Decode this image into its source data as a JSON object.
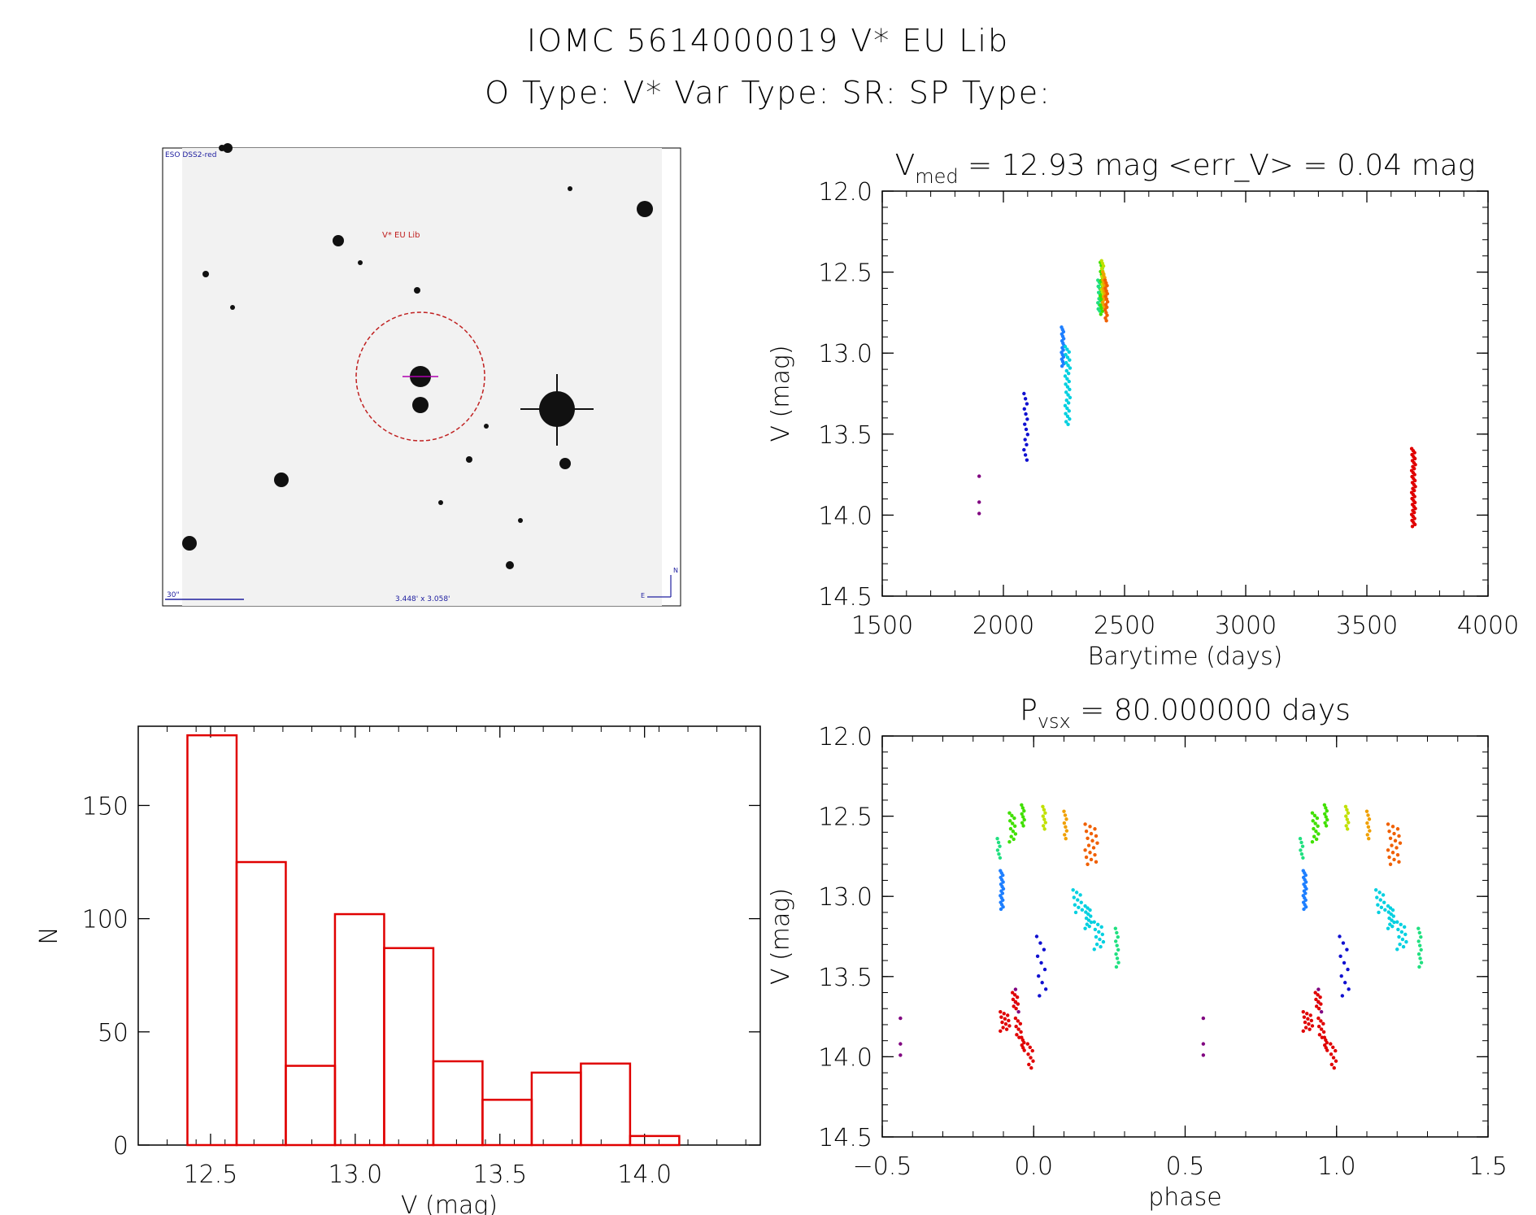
{
  "header": {
    "line1": "IOMC 5614000019    V* EU Lib",
    "line2": "O Type: V*  Var Type: SR:  SP Type:"
  },
  "finder": {
    "survey_label": "ESO DSS2-red",
    "target_label": "V* EU Lib",
    "scale_label": "30\"",
    "fov_label": "3.448' x 3.058'",
    "north_label": "N",
    "east_label": "E"
  },
  "chart_data": [
    {
      "id": "lightcurve",
      "type": "scatter",
      "title_main": "V",
      "title_sub": "med",
      "title_rest": " = 12.93 mag <err_V> = 0.04 mag",
      "xlabel": "Barytime (days)",
      "ylabel": "V (mag)",
      "xlim": [
        1500,
        4000
      ],
      "ylim": [
        14.5,
        12.0
      ],
      "xticks": [
        1500,
        2000,
        2500,
        3000,
        3500,
        4000
      ],
      "xtick_labels": [
        "1500",
        "2000",
        "2500",
        "3000",
        "3500",
        "4000"
      ],
      "yticks": [
        12.0,
        12.5,
        13.0,
        13.5,
        14.0,
        14.5
      ],
      "ytick_labels": [
        "12.0",
        "12.5",
        "13.0",
        "13.5",
        "14.0",
        "14.5"
      ],
      "groups": [
        {
          "color": "#800080",
          "points": [
            [
              1900,
              13.76
            ],
            [
              1900,
              13.92
            ],
            [
              1900,
              13.99
            ]
          ]
        },
        {
          "color": "#1010d0",
          "x": [
            2085,
            2100
          ],
          "y": [
            13.25,
            13.66
          ],
          "n": 14
        },
        {
          "color": "#1e7fff",
          "x": [
            2240,
            2250
          ],
          "y": [
            12.84,
            13.08
          ],
          "n": 18
        },
        {
          "color": "#00d0e0",
          "x": [
            2255,
            2275
          ],
          "y": [
            12.96,
            13.44
          ],
          "n": 30
        },
        {
          "color": "#20e080",
          "x": [
            2390,
            2405
          ],
          "y": [
            12.55,
            12.74
          ],
          "n": 16
        },
        {
          "color": "#40e000",
          "x": [
            2400,
            2410
          ],
          "y": [
            12.44,
            12.76
          ],
          "n": 18
        },
        {
          "color": "#c0e000",
          "x": [
            2405,
            2415
          ],
          "y": [
            12.43,
            12.64
          ],
          "n": 14
        },
        {
          "color": "#f0a000",
          "x": [
            2410,
            2420
          ],
          "y": [
            12.5,
            12.72
          ],
          "n": 14
        },
        {
          "color": "#f06000",
          "x": [
            2420,
            2430
          ],
          "y": [
            12.55,
            12.8
          ],
          "n": 16
        },
        {
          "color": "#e00000",
          "x": [
            3685,
            3700
          ],
          "y": [
            13.59,
            14.07
          ],
          "n": 40
        }
      ]
    },
    {
      "id": "histogram",
      "type": "bar",
      "xlabel": "V (mag)",
      "ylabel": "N",
      "xlim": [
        12.25,
        14.4
      ],
      "ylim": [
        0,
        185
      ],
      "xticks": [
        12.5,
        13.0,
        13.5,
        14.0
      ],
      "xtick_labels": [
        "12.5",
        "13.0",
        "13.5",
        "14.0"
      ],
      "yticks": [
        0,
        50,
        100,
        150
      ],
      "ytick_labels": [
        "0",
        "50",
        "100",
        "150"
      ],
      "bin_edges": [
        12.42,
        12.59,
        12.76,
        12.93,
        13.1,
        13.27,
        13.44,
        13.61,
        13.78,
        13.95,
        14.12
      ],
      "counts": [
        181,
        125,
        35,
        102,
        87,
        37,
        20,
        32,
        36,
        4
      ],
      "bar_color": "#e00000"
    },
    {
      "id": "phased",
      "type": "scatter",
      "title_main": "P",
      "title_sub": "vsx",
      "title_rest": " = 80.000000 days",
      "xlabel": "phase",
      "ylabel": "V (mag)",
      "xlim": [
        -0.5,
        1.5
      ],
      "ylim": [
        14.5,
        12.0
      ],
      "xticks": [
        -0.5,
        0.0,
        0.5,
        1.0,
        1.5
      ],
      "xtick_labels": [
        "−0.5",
        "0.0",
        "0.5",
        "1.0",
        "1.5"
      ],
      "yticks": [
        12.0,
        12.5,
        13.0,
        13.5,
        14.0,
        14.5
      ],
      "ytick_labels": [
        "12.0",
        "12.5",
        "13.0",
        "13.5",
        "14.0",
        "14.5"
      ],
      "groups": [
        {
          "color": "#800080",
          "points": [
            [
              -0.44,
              13.76
            ],
            [
              -0.44,
              13.92
            ],
            [
              -0.44,
              13.99
            ]
          ]
        },
        {
          "color": "#800080",
          "points": [
            [
              -0.06,
              13.58
            ],
            [
              -0.06,
              13.66
            ],
            [
              -0.05,
              13.72
            ]
          ]
        },
        {
          "color": "#e00000",
          "x": [
            -0.11,
            -0.08
          ],
          "y": [
            13.72,
            13.84
          ],
          "n": 12
        },
        {
          "color": "#e00000",
          "x": [
            -0.07,
            -0.05
          ],
          "y": [
            13.6,
            13.7
          ],
          "n": 8
        },
        {
          "color": "#e00000",
          "x": [
            -0.06,
            -0.04
          ],
          "y": [
            13.76,
            13.88
          ],
          "n": 8
        },
        {
          "color": "#e00000",
          "x": [
            -0.04,
            -0.03
          ],
          "y": [
            13.88,
            13.96
          ],
          "n": 6
        },
        {
          "color": "#e00000",
          "x": [
            -0.02,
            0.0
          ],
          "y": [
            13.92,
            14.07
          ],
          "n": 8
        },
        {
          "color": "#1010d0",
          "x": [
            0.01,
            0.04
          ],
          "y": [
            13.25,
            13.62
          ],
          "n": 10
        },
        {
          "color": "#1e7fff",
          "x": [
            -0.11,
            -0.1
          ],
          "y": [
            12.84,
            13.08
          ],
          "n": 18
        },
        {
          "color": "#00d0e0",
          "x": [
            0.13,
            0.16
          ],
          "y": [
            12.96,
            13.1
          ],
          "n": 10
        },
        {
          "color": "#00d0e0",
          "x": [
            0.17,
            0.19
          ],
          "y": [
            13.06,
            13.2
          ],
          "n": 12
        },
        {
          "color": "#00d0e0",
          "x": [
            0.2,
            0.23
          ],
          "y": [
            13.16,
            13.33
          ],
          "n": 12
        },
        {
          "color": "#20e080",
          "x": [
            0.27,
            0.28
          ],
          "y": [
            13.2,
            13.44
          ],
          "n": 10
        },
        {
          "color": "#20e080",
          "x": [
            -0.12,
            -0.11
          ],
          "y": [
            12.64,
            12.76
          ],
          "n": 6
        },
        {
          "color": "#40e000",
          "x": [
            -0.08,
            -0.06
          ],
          "y": [
            12.48,
            12.66
          ],
          "n": 12
        },
        {
          "color": "#40e000",
          "x": [
            -0.04,
            -0.03
          ],
          "y": [
            12.43,
            12.56
          ],
          "n": 8
        },
        {
          "color": "#c0e000",
          "x": [
            0.03,
            0.04
          ],
          "y": [
            12.44,
            12.58
          ],
          "n": 8
        },
        {
          "color": "#f0a000",
          "x": [
            0.1,
            0.11
          ],
          "y": [
            12.47,
            12.64
          ],
          "n": 8
        },
        {
          "color": "#f06000",
          "x": [
            0.17,
            0.21
          ],
          "y": [
            12.55,
            12.8
          ],
          "n": 18
        }
      ],
      "repeat_offset": 1.0
    }
  ]
}
